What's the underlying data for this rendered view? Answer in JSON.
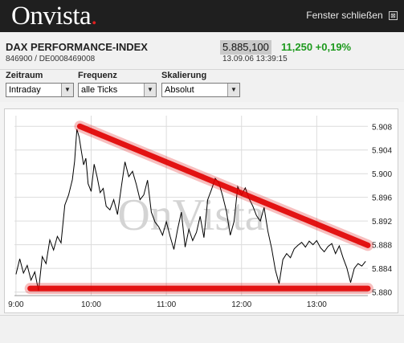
{
  "header": {
    "logo_main": "Onvista",
    "logo_dot": ".",
    "close_label": "Fenster schließen",
    "close_glyph": "⊠"
  },
  "quote": {
    "name": "DAX PERFORMANCE-INDEX",
    "isin": "846900 / DE0008469008",
    "price": "5.885,100",
    "change": "11,250  +0,19%",
    "timestamp": "13.09.06 13:39:15"
  },
  "controls": {
    "zeitraum": {
      "label": "Zeitraum",
      "value": "Intraday"
    },
    "frequenz": {
      "label": "Frequenz",
      "value": "alle Ticks"
    },
    "skalierung": {
      "label": "Skalierung",
      "value": "Absolut"
    }
  },
  "colors": {
    "price_line": "#000000",
    "trend_lines": "#e00000",
    "change_positive": "#1e9a1e",
    "watermark": "#d4d4d4"
  },
  "chart_data": {
    "type": "line",
    "title": "",
    "xlabel": "",
    "ylabel": "",
    "x_ticks": [
      "9:00",
      "10:00",
      "11:00",
      "12:00",
      "13:00"
    ],
    "y_ticks": [
      "5.880",
      "5.884",
      "5.888",
      "5.892",
      "5.896",
      "5.900",
      "5.904",
      "5.908"
    ],
    "ylim": [
      5879.4,
      5909.8
    ],
    "xlim_hours": [
      8.98,
      13.68
    ],
    "grid": true,
    "watermark": "OnVista",
    "series": [
      {
        "values": [
          [
            9.0,
            5883.0
          ],
          [
            9.05,
            5885.6
          ],
          [
            9.1,
            5883.2
          ],
          [
            9.15,
            5884.5
          ],
          [
            9.2,
            5882.0
          ],
          [
            9.25,
            5883.4
          ],
          [
            9.3,
            5880.2
          ],
          [
            9.35,
            5886.0
          ],
          [
            9.4,
            5884.8
          ],
          [
            9.45,
            5888.8
          ],
          [
            9.5,
            5887.1
          ],
          [
            9.55,
            5889.4
          ],
          [
            9.6,
            5888.3
          ],
          [
            9.65,
            5894.7
          ],
          [
            9.7,
            5896.4
          ],
          [
            9.75,
            5899.0
          ],
          [
            9.78,
            5902.1
          ],
          [
            9.81,
            5907.5
          ],
          [
            9.84,
            5906.2
          ],
          [
            9.87,
            5903.8
          ],
          [
            9.9,
            5901.5
          ],
          [
            9.93,
            5902.6
          ],
          [
            9.96,
            5898.3
          ],
          [
            10.0,
            5897.0
          ],
          [
            10.04,
            5901.6
          ],
          [
            10.08,
            5899.4
          ],
          [
            10.12,
            5896.8
          ],
          [
            10.16,
            5897.5
          ],
          [
            10.2,
            5894.5
          ],
          [
            10.25,
            5893.9
          ],
          [
            10.3,
            5895.6
          ],
          [
            10.35,
            5893.1
          ],
          [
            10.4,
            5897.6
          ],
          [
            10.45,
            5902.0
          ],
          [
            10.5,
            5899.5
          ],
          [
            10.55,
            5900.4
          ],
          [
            10.6,
            5898.2
          ],
          [
            10.65,
            5895.6
          ],
          [
            10.7,
            5896.4
          ],
          [
            10.75,
            5898.9
          ],
          [
            10.8,
            5893.5
          ],
          [
            10.85,
            5891.8
          ],
          [
            10.9,
            5891.0
          ],
          [
            10.95,
            5889.6
          ],
          [
            11.0,
            5891.9
          ],
          [
            11.05,
            5889.4
          ],
          [
            11.1,
            5887.2
          ],
          [
            11.15,
            5890.6
          ],
          [
            11.2,
            5893.5
          ],
          [
            11.25,
            5887.6
          ],
          [
            11.3,
            5890.6
          ],
          [
            11.35,
            5888.7
          ],
          [
            11.4,
            5890.1
          ],
          [
            11.45,
            5892.8
          ],
          [
            11.5,
            5889.2
          ],
          [
            11.55,
            5895.6
          ],
          [
            11.6,
            5897.3
          ],
          [
            11.65,
            5899.2
          ],
          [
            11.7,
            5898.4
          ],
          [
            11.75,
            5896.2
          ],
          [
            11.8,
            5893.6
          ],
          [
            11.85,
            5889.6
          ],
          [
            11.9,
            5891.9
          ],
          [
            11.95,
            5897.8
          ],
          [
            12.0,
            5896.4
          ],
          [
            12.05,
            5897.6
          ],
          [
            12.1,
            5895.8
          ],
          [
            12.15,
            5894.5
          ],
          [
            12.2,
            5892.9
          ],
          [
            12.25,
            5892.0
          ],
          [
            12.3,
            5894.3
          ],
          [
            12.35,
            5890.3
          ],
          [
            12.4,
            5887.4
          ],
          [
            12.45,
            5883.7
          ],
          [
            12.5,
            5881.4
          ],
          [
            12.55,
            5885.5
          ],
          [
            12.6,
            5886.5
          ],
          [
            12.65,
            5885.8
          ],
          [
            12.7,
            5887.3
          ],
          [
            12.75,
            5887.9
          ],
          [
            12.8,
            5888.4
          ],
          [
            12.85,
            5887.6
          ],
          [
            12.9,
            5888.6
          ],
          [
            12.95,
            5888.0
          ],
          [
            13.0,
            5888.7
          ],
          [
            13.05,
            5887.5
          ],
          [
            13.1,
            5886.8
          ],
          [
            13.15,
            5887.7
          ],
          [
            13.2,
            5888.2
          ],
          [
            13.25,
            5886.5
          ],
          [
            13.3,
            5887.8
          ],
          [
            13.35,
            5885.8
          ],
          [
            13.4,
            5884.1
          ],
          [
            13.45,
            5881.6
          ],
          [
            13.5,
            5884.0
          ],
          [
            13.55,
            5884.8
          ],
          [
            13.6,
            5884.4
          ],
          [
            13.65,
            5885.2
          ]
        ]
      }
    ],
    "annotations": [
      {
        "type": "trend-line",
        "from": [
          9.85,
          5908.0
        ],
        "to": [
          13.68,
          5887.9
        ]
      },
      {
        "type": "support-line",
        "from": [
          9.19,
          5880.6
        ],
        "to": [
          13.68,
          5880.6
        ]
      }
    ]
  }
}
